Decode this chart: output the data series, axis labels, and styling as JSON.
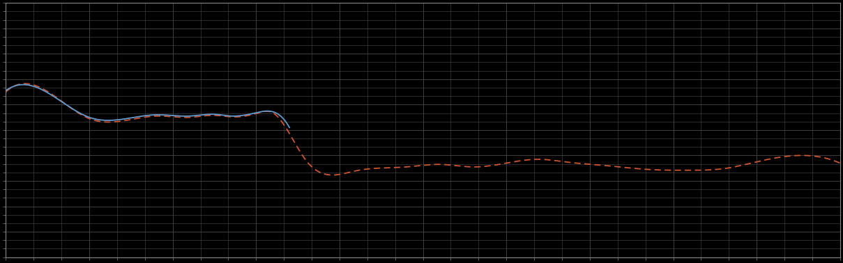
{
  "background_color": "#000000",
  "plot_bg_color": "#000000",
  "grid_color": "#4a4a4a",
  "line1_color": "#6699cc",
  "line2_color": "#cc5533",
  "line_width": 1.3,
  "figsize": [
    12.09,
    3.78
  ],
  "dpi": 100,
  "xlim": [
    0,
    100
  ],
  "ylim": [
    0,
    10
  ],
  "spine_color": "#888888",
  "blue_end_x": 34,
  "blue_keypoints_x": [
    0,
    3,
    10,
    18,
    22,
    25,
    27,
    30,
    32,
    34
  ],
  "blue_keypoints_y": [
    6.55,
    6.75,
    5.5,
    5.6,
    5.55,
    5.62,
    5.55,
    5.68,
    5.72,
    5.1
  ],
  "red_keypoints_x": [
    0,
    3,
    10,
    18,
    22,
    25,
    27,
    30,
    32,
    36,
    42,
    48,
    52,
    56,
    60,
    64,
    67,
    72,
    77,
    82,
    86,
    90,
    95,
    100
  ],
  "red_keypoints_y": [
    6.5,
    6.8,
    5.45,
    5.55,
    5.5,
    5.58,
    5.52,
    5.65,
    5.68,
    3.8,
    3.4,
    3.55,
    3.65,
    3.55,
    3.7,
    3.85,
    3.75,
    3.6,
    3.45,
    3.42,
    3.48,
    3.75,
    4.0,
    3.7
  ],
  "n_xticks_major": 11,
  "n_yticks_major": 11,
  "n_xticks_minor": 3,
  "n_yticks_minor": 3
}
